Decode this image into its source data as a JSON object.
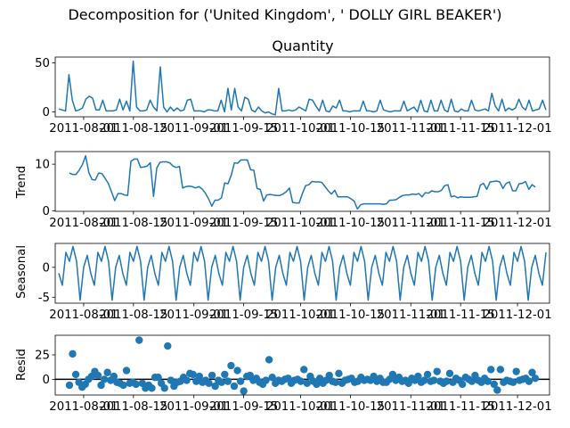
{
  "figure": {
    "suptitle": "Decomposition for ('United Kingdom', ' DOLLY GIRL BEAKER')"
  },
  "colors": {
    "series": "#1f77b4",
    "axis": "#000000",
    "zero_line": "#000000"
  },
  "chart_data": [
    {
      "type": "line",
      "title": "Quantity",
      "ylabel": "",
      "x_start": "2011-07-25",
      "x_end": "2011-12-09",
      "xticks": [
        "2011-08-01",
        "2011-08-15",
        "2011-09-01",
        "2011-09-15",
        "2011-10-01",
        "2011-10-15",
        "2011-11-01",
        "2011-11-15",
        "2011-12-01"
      ],
      "ylim": [
        -5,
        56
      ],
      "yticks": [
        0,
        50
      ],
      "values": [
        3,
        2,
        1,
        38,
        12,
        1,
        2,
        4,
        13,
        16,
        14,
        2,
        2,
        12,
        1,
        1,
        1,
        2,
        13,
        2,
        11,
        1,
        52,
        5,
        1,
        1,
        2,
        12,
        5,
        1,
        46,
        5,
        0,
        5,
        1,
        4,
        1,
        2,
        12,
        13,
        1,
        1,
        1,
        0,
        2,
        2,
        1,
        1,
        12,
        0,
        24,
        2,
        24,
        5,
        1,
        15,
        13,
        2,
        0,
        5,
        1,
        -1,
        0,
        -2,
        -3,
        24,
        1,
        1,
        2,
        1,
        2,
        5,
        3,
        1,
        13,
        12,
        6,
        1,
        12,
        1,
        0,
        6,
        4,
        12,
        1,
        1,
        0,
        1,
        1,
        1,
        11,
        1,
        1,
        0,
        1,
        12,
        2,
        1,
        0,
        1,
        1,
        1,
        11,
        1,
        3,
        5,
        0,
        12,
        1,
        0,
        12,
        1,
        1,
        12,
        2,
        0,
        13,
        1,
        0,
        3,
        1,
        1,
        12,
        2,
        1,
        2,
        3,
        1,
        19,
        6,
        1,
        13,
        1,
        4,
        2,
        4,
        13,
        5,
        2,
        12,
        1,
        2,
        3,
        12,
        2
      ]
    },
    {
      "type": "line",
      "ylabel": "Trend",
      "x_start": "2011-07-28",
      "x_end": "2011-12-06",
      "xticks": [
        "2011-08-01",
        "2011-08-15",
        "2011-09-01",
        "2011-09-15",
        "2011-10-01",
        "2011-10-15",
        "2011-11-01",
        "2011-11-15",
        "2011-12-01"
      ],
      "ylim": [
        -0.1,
        12.7
      ],
      "yticks": [
        0,
        10
      ],
      "values": [
        8.1,
        7.8,
        7.8,
        8.7,
        9.9,
        11.8,
        8.2,
        6.7,
        6.6,
        8.1,
        8.0,
        7.0,
        5.9,
        4.1,
        2.2,
        3.7,
        3.7,
        3.4,
        3.3,
        10.6,
        11.1,
        11.1,
        9.3,
        9.4,
        9.6,
        10.3,
        3.1,
        9.2,
        10.4,
        10.5,
        10.5,
        10.3,
        9.6,
        9.3,
        9.5,
        4.9,
        5.2,
        5.3,
        5.2,
        4.9,
        5.2,
        4.7,
        3.8,
        2.6,
        1.0,
        2.3,
        2.3,
        2.8,
        6.0,
        5.8,
        7.6,
        10.3,
        10.2,
        10.9,
        10.9,
        10.9,
        8.8,
        8.7,
        4.8,
        4.6,
        2.1,
        3.4,
        3.5,
        3.4,
        3.3,
        3.3,
        3.6,
        4.1,
        4.9,
        1.8,
        1.7,
        1.7,
        3.7,
        5.4,
        5.6,
        6.3,
        6.2,
        6.2,
        6.1,
        5.2,
        4.3,
        3.6,
        4.4,
        3.0,
        3.0,
        3.0,
        3.0,
        2.6,
        2.1,
        0.4,
        1.3,
        1.5,
        1.5,
        1.5,
        1.5,
        1.5,
        1.5,
        1.4,
        1.5,
        2.3,
        2.3,
        2.4,
        2.9,
        3.3,
        3.4,
        3.4,
        3.6,
        3.5,
        3.7,
        3.0,
        3.9,
        3.8,
        4.3,
        4.1,
        4.1,
        4.4,
        5.4,
        5.6,
        3.0,
        3.2,
        2.8,
        3.0,
        2.9,
        2.9,
        2.9,
        3.0,
        3.1,
        5.5,
        5.9,
        4.6,
        6.2,
        6.3,
        6.4,
        6.2,
        4.8,
        5.9,
        6.2,
        4.3,
        4.3,
        5.8,
        5.9,
        6.3,
        4.6,
        5.6,
        5.1
      ]
    },
    {
      "type": "line",
      "ylabel": "Seasonal",
      "x_start": "2011-07-25",
      "x_end": "2011-12-09",
      "xticks": [
        "2011-08-01",
        "2011-08-15",
        "2011-09-01",
        "2011-09-15",
        "2011-10-01",
        "2011-10-15",
        "2011-11-01",
        "2011-11-15",
        "2011-12-01"
      ],
      "ylim": [
        -6,
        4
      ],
      "yticks": [
        -5,
        0
      ],
      "pattern": [
        -1.0,
        -3.0,
        2.5,
        1.0,
        3.5,
        1.0,
        -5.5,
        0.0,
        2.0
      ],
      "n_points": 138
    },
    {
      "type": "scatter",
      "ylabel": "Resid",
      "x_start": "2011-07-28",
      "x_end": "2011-12-06",
      "xticks": [
        "2011-08-01",
        "2011-08-15",
        "2011-09-01",
        "2011-09-15",
        "2011-10-01",
        "2011-10-15",
        "2011-11-01",
        "2011-11-15",
        "2011-12-01"
      ],
      "ylim": [
        -16,
        45
      ],
      "yticks": [
        0,
        25
      ],
      "zero_line": true,
      "values": [
        -6,
        26,
        5,
        -3,
        -8,
        -5,
        0,
        3,
        8,
        4,
        -6,
        0,
        7,
        -1,
        3,
        -3,
        -4,
        -6,
        9,
        -4,
        -3,
        -5,
        40,
        -4,
        -9,
        -6,
        -9,
        2,
        2,
        -4,
        -9,
        34,
        -1,
        -7,
        -3,
        -2,
        2,
        -1,
        6,
        5,
        -2,
        3,
        -3,
        -1,
        -4,
        4,
        -7,
        -1,
        -3,
        5,
        -2,
        14,
        -7,
        9,
        -2,
        -12,
        3,
        4,
        -1,
        1,
        -3,
        -5,
        -1,
        20,
        2,
        -4,
        -1,
        -2,
        0,
        1,
        -4,
        -1,
        0,
        -2,
        10,
        -4,
        3,
        -2,
        -5,
        1,
        -4,
        -1,
        4,
        -2,
        -3,
        6,
        -4,
        -1,
        0,
        1,
        -3,
        -2,
        2,
        -1,
        0,
        -1,
        3,
        -2,
        1,
        -3,
        -3,
        0,
        5,
        -1,
        2,
        -2,
        -1,
        -4,
        1,
        -1,
        3,
        -3,
        -1,
        5,
        -2,
        -1,
        8,
        -2,
        -4,
        -2,
        6,
        -3,
        1,
        -1,
        -5,
        2,
        0,
        -2,
        4,
        -1,
        -3,
        1,
        -2,
        10,
        -5,
        -11,
        10,
        -3,
        -1,
        -2,
        -3,
        8,
        -1,
        0,
        1,
        -2,
        7,
        1
      ]
    }
  ]
}
